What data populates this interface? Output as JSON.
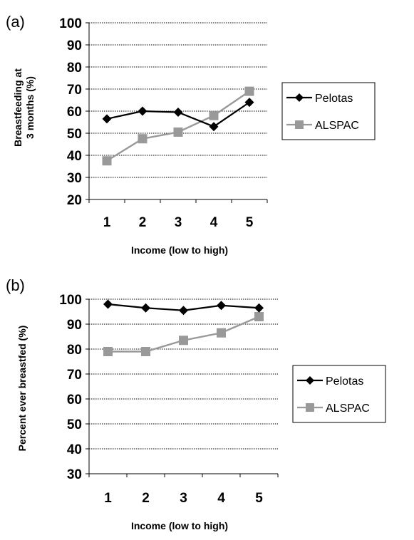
{
  "chart_data": [
    {
      "type": "line",
      "panel_label": "(a)",
      "xlabel": "Income (low to high)",
      "ylabel_lines": [
        "Breastfeeding at",
        "3 months (%)"
      ],
      "categories": [
        "1",
        "2",
        "3",
        "4",
        "5"
      ],
      "ylim": [
        20,
        100
      ],
      "yticks": [
        20,
        30,
        40,
        50,
        60,
        70,
        80,
        90,
        100
      ],
      "grid": true,
      "legend_position": "right",
      "series": [
        {
          "name": "Pelotas",
          "color": "#000000",
          "marker": "diamond",
          "values": [
            56.5,
            60,
            59.5,
            53,
            64
          ]
        },
        {
          "name": "ALSPAC",
          "color": "#999999",
          "marker": "square",
          "values": [
            37.5,
            47.5,
            50.5,
            58,
            69
          ]
        }
      ]
    },
    {
      "type": "line",
      "panel_label": "(b)",
      "xlabel": "Income (low to high)",
      "ylabel": "Percent ever breastfed (%)",
      "categories": [
        "1",
        "2",
        "3",
        "4",
        "5"
      ],
      "ylim": [
        30,
        100
      ],
      "yticks": [
        30,
        40,
        50,
        60,
        70,
        80,
        90,
        100
      ],
      "grid": true,
      "legend_position": "right",
      "series": [
        {
          "name": "Pelotas",
          "color": "#000000",
          "marker": "diamond",
          "values": [
            98,
            96.5,
            95.5,
            97.5,
            96.5
          ]
        },
        {
          "name": "ALSPAC",
          "color": "#999999",
          "marker": "square",
          "values": [
            79,
            79,
            83.5,
            86.5,
            93
          ]
        }
      ]
    }
  ]
}
